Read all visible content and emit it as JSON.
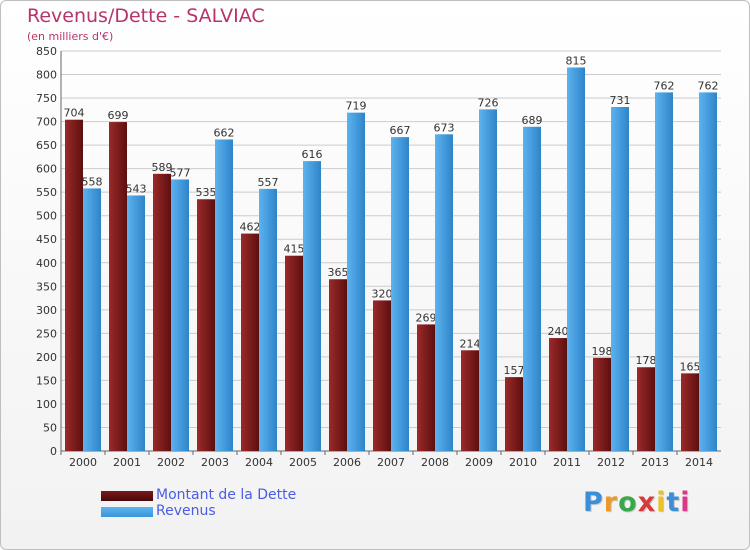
{
  "header": {
    "title": "Revenus/Dette - SALVIAC",
    "subtitle": "(en milliers d'€)"
  },
  "colors": {
    "dette": "#7a1a1a",
    "revenus": "#3a96d8",
    "grid": "#cccccc",
    "axis_text": "#333333"
  },
  "chart_data": {
    "type": "bar",
    "title": "Revenus/Dette - SALVIAC",
    "ylabel": "(en milliers d'€)",
    "xlabel": "",
    "categories": [
      "2000",
      "2001",
      "2002",
      "2003",
      "2004",
      "2005",
      "2006",
      "2007",
      "2008",
      "2009",
      "2010",
      "2011",
      "2012",
      "2013",
      "2014"
    ],
    "series": [
      {
        "name": "Montant de la Dette",
        "values": [
          704,
          699,
          589,
          535,
          462,
          415,
          365,
          320,
          269,
          214,
          157,
          240,
          198,
          178,
          165
        ]
      },
      {
        "name": "Revenus",
        "values": [
          558,
          543,
          577,
          662,
          557,
          616,
          719,
          667,
          673,
          726,
          689,
          815,
          731,
          762,
          762
        ]
      }
    ],
    "ylim": [
      0,
      850
    ],
    "yticks": [
      0,
      50,
      100,
      150,
      200,
      250,
      300,
      350,
      400,
      450,
      500,
      550,
      600,
      650,
      700,
      750,
      800,
      850
    ],
    "grid": true,
    "legend_position": "bottom-left"
  },
  "legend": {
    "items": [
      {
        "label": "Montant de la Dette"
      },
      {
        "label": "Revenus"
      }
    ]
  },
  "brand": {
    "letters": [
      {
        "char": "P",
        "color": "#3a8fd8"
      },
      {
        "char": "r",
        "color": "#e89a2a"
      },
      {
        "char": "o",
        "color": "#3aa84a"
      },
      {
        "char": "x",
        "color": "#d83a3a"
      },
      {
        "char": "i",
        "color": "#e8c22a"
      },
      {
        "char": "t",
        "color": "#3a8fd8"
      },
      {
        "char": "i",
        "color": "#d83a8a"
      }
    ]
  }
}
